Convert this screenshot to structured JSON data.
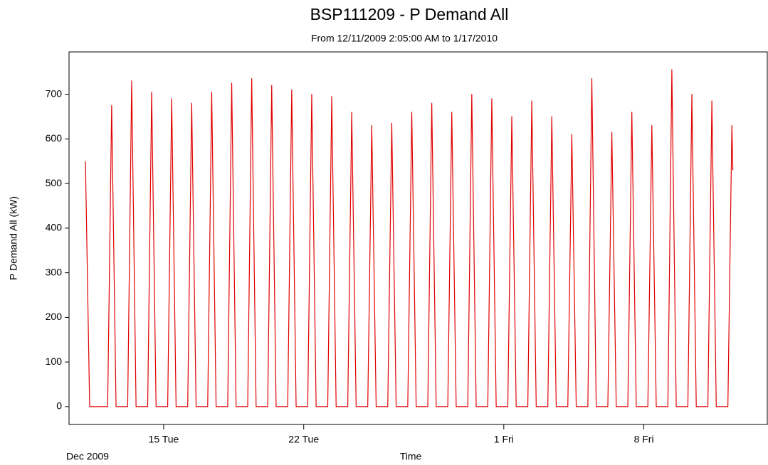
{
  "chart_data": {
    "type": "line",
    "title": "BSP111209 - P Demand All",
    "subtitle": "From 12/11/2009 2:05:00 AM to 1/17/2010",
    "y_label": "P Demand All (kW)",
    "x_label": "Time",
    "x_period_label": "Dec 2009",
    "xlim": [
      10.27,
      45.17
    ],
    "xticks": [
      {
        "value": 15,
        "label": "15 Tue"
      },
      {
        "value": 22,
        "label": "22 Tue"
      },
      {
        "value": 32,
        "label": "1 Fri"
      },
      {
        "value": 39,
        "label": "8 Fri"
      }
    ],
    "ylim": [
      -40,
      795
    ],
    "yticks": [
      0,
      100,
      200,
      300,
      400,
      500,
      600,
      700
    ],
    "grid": false,
    "series": [
      {
        "name": "P Demand All",
        "color": "#e00000",
        "x": [
          11.09,
          11.3,
          12.2,
          12.4,
          12.62,
          13.2,
          13.4,
          13.62,
          14.2,
          14.4,
          14.62,
          15.2,
          15.4,
          15.62,
          16.2,
          16.4,
          16.62,
          17.2,
          17.4,
          17.62,
          18.2,
          18.4,
          18.62,
          19.2,
          19.4,
          19.62,
          20.2,
          20.4,
          20.62,
          21.2,
          21.4,
          21.62,
          22.2,
          22.4,
          22.62,
          23.2,
          23.4,
          23.62,
          24.2,
          24.4,
          24.62,
          25.2,
          25.4,
          25.62,
          26.2,
          26.4,
          26.62,
          27.2,
          27.4,
          27.62,
          28.2,
          28.4,
          28.62,
          29.2,
          29.4,
          29.62,
          30.2,
          30.4,
          30.62,
          31.2,
          31.4,
          31.62,
          32.2,
          32.4,
          32.62,
          33.2,
          33.4,
          33.62,
          34.2,
          34.4,
          34.62,
          35.2,
          35.4,
          35.62,
          36.2,
          36.4,
          36.62,
          37.2,
          37.4,
          37.62,
          38.2,
          38.4,
          38.62,
          39.2,
          39.4,
          39.62,
          40.2,
          40.4,
          40.62,
          41.2,
          41.4,
          41.62,
          42.2,
          42.4,
          42.62,
          43.2,
          43.4,
          43.45
        ],
        "values": [
          550,
          0,
          0,
          675,
          0,
          0,
          730,
          0,
          0,
          705,
          0,
          0,
          690,
          0,
          0,
          680,
          0,
          0,
          705,
          0,
          0,
          725,
          0,
          0,
          735,
          0,
          0,
          720,
          0,
          0,
          710,
          0,
          0,
          700,
          0,
          0,
          695,
          0,
          0,
          660,
          0,
          0,
          630,
          0,
          0,
          635,
          0,
          0,
          660,
          0,
          0,
          680,
          0,
          0,
          660,
          0,
          0,
          700,
          0,
          0,
          690,
          0,
          0,
          650,
          0,
          0,
          685,
          0,
          0,
          650,
          0,
          0,
          610,
          0,
          0,
          735,
          0,
          0,
          615,
          0,
          0,
          660,
          0,
          0,
          630,
          0,
          0,
          755,
          0,
          0,
          700,
          0,
          0,
          685,
          0,
          0,
          630,
          530
        ]
      }
    ]
  }
}
